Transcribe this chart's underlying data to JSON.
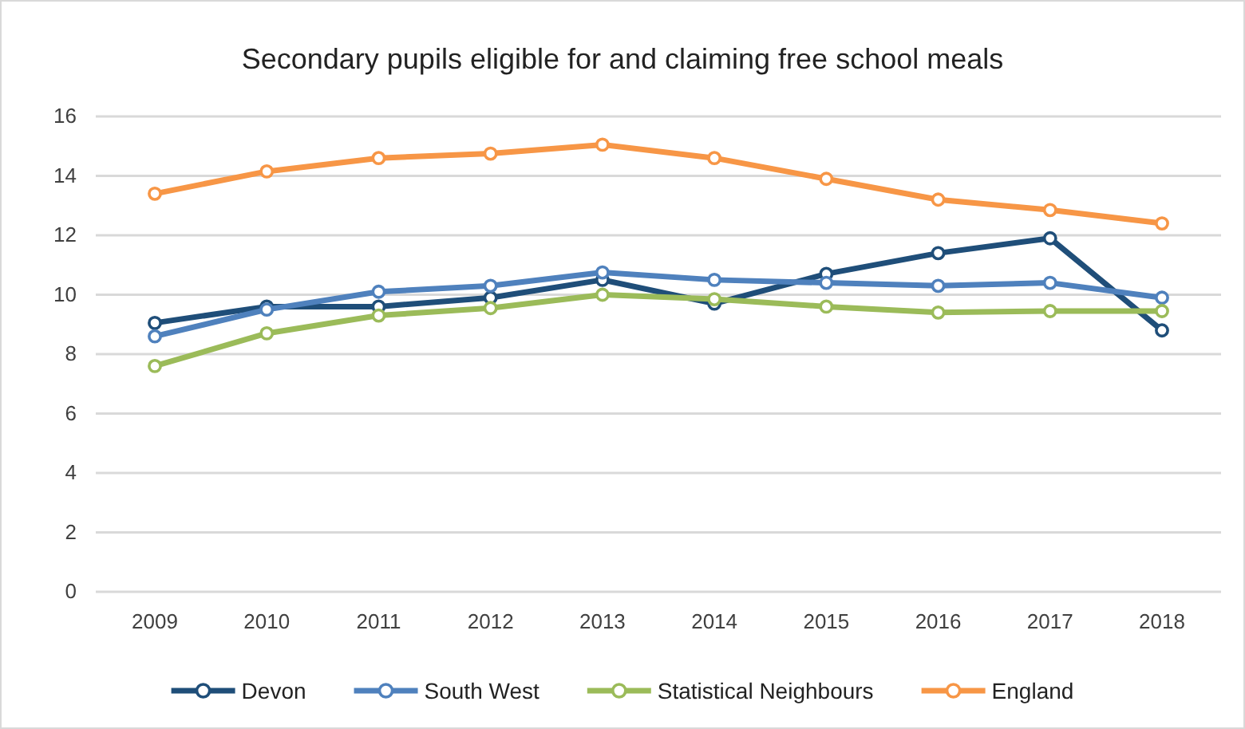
{
  "chart_data": {
    "type": "line",
    "title": "Secondary pupils eligible for and claiming free school meals",
    "categories": [
      "2009",
      "2010",
      "2011",
      "2012",
      "2013",
      "2014",
      "2015",
      "2016",
      "2017",
      "2018"
    ],
    "series": [
      {
        "name": "Devon",
        "color": "#1f4e79",
        "values": [
          9.05,
          9.6,
          9.6,
          9.9,
          10.5,
          9.7,
          10.7,
          11.4,
          11.9,
          8.8
        ]
      },
      {
        "name": "South West",
        "color": "#4f81bd",
        "values": [
          8.6,
          9.5,
          10.1,
          10.3,
          10.75,
          10.5,
          10.4,
          10.3,
          10.4,
          9.9
        ]
      },
      {
        "name": "Statistical Neighbours",
        "color": "#9bbb59",
        "values": [
          7.6,
          8.7,
          9.3,
          9.55,
          10.0,
          9.85,
          9.6,
          9.4,
          9.45,
          9.45
        ]
      },
      {
        "name": "England",
        "color": "#f79646",
        "values": [
          13.4,
          14.15,
          14.6,
          14.75,
          15.05,
          14.6,
          13.9,
          13.2,
          12.85,
          12.4
        ]
      }
    ],
    "ylim": [
      0,
      16
    ],
    "yticks": [
      0,
      2,
      4,
      6,
      8,
      10,
      12,
      14,
      16
    ],
    "grid": "y",
    "legend": "bottom",
    "marker": "circle",
    "line_style": "solid"
  }
}
